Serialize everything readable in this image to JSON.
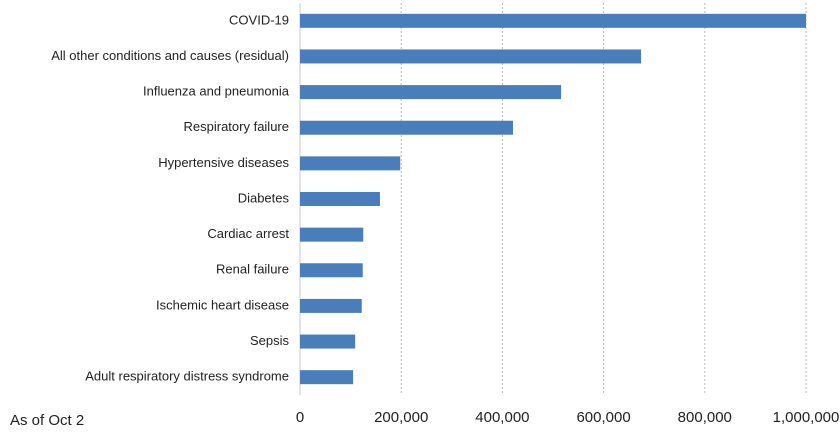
{
  "chart_data": {
    "type": "barh",
    "annotation": "As of Oct 2",
    "categories": [
      "COVID-19",
      "All other conditions and causes (residual)",
      "Influenza and pneumonia",
      "Respiratory failure",
      "Hypertensive diseases",
      "Diabetes",
      "Cardiac arrest",
      "Renal failure",
      "Ischemic heart disease",
      "Sepsis",
      "Adult respiratory distress syndrome"
    ],
    "values": [
      1000000,
      674000,
      516000,
      421000,
      198000,
      158000,
      125000,
      124000,
      122000,
      109000,
      105000
    ],
    "color": "#4a7ebb",
    "xlim": [
      0,
      1000000
    ],
    "xticks": [
      0,
      {
        "value": 200000,
        "label": "200,000"
      },
      {
        "value": 400000,
        "label": "400,000"
      },
      {
        "value": 600000,
        "label": "600,000"
      },
      {
        "value": 800000,
        "label": "800,000"
      },
      {
        "value": 1000000,
        "label": "1,000,000"
      }
    ],
    "grid": true
  }
}
